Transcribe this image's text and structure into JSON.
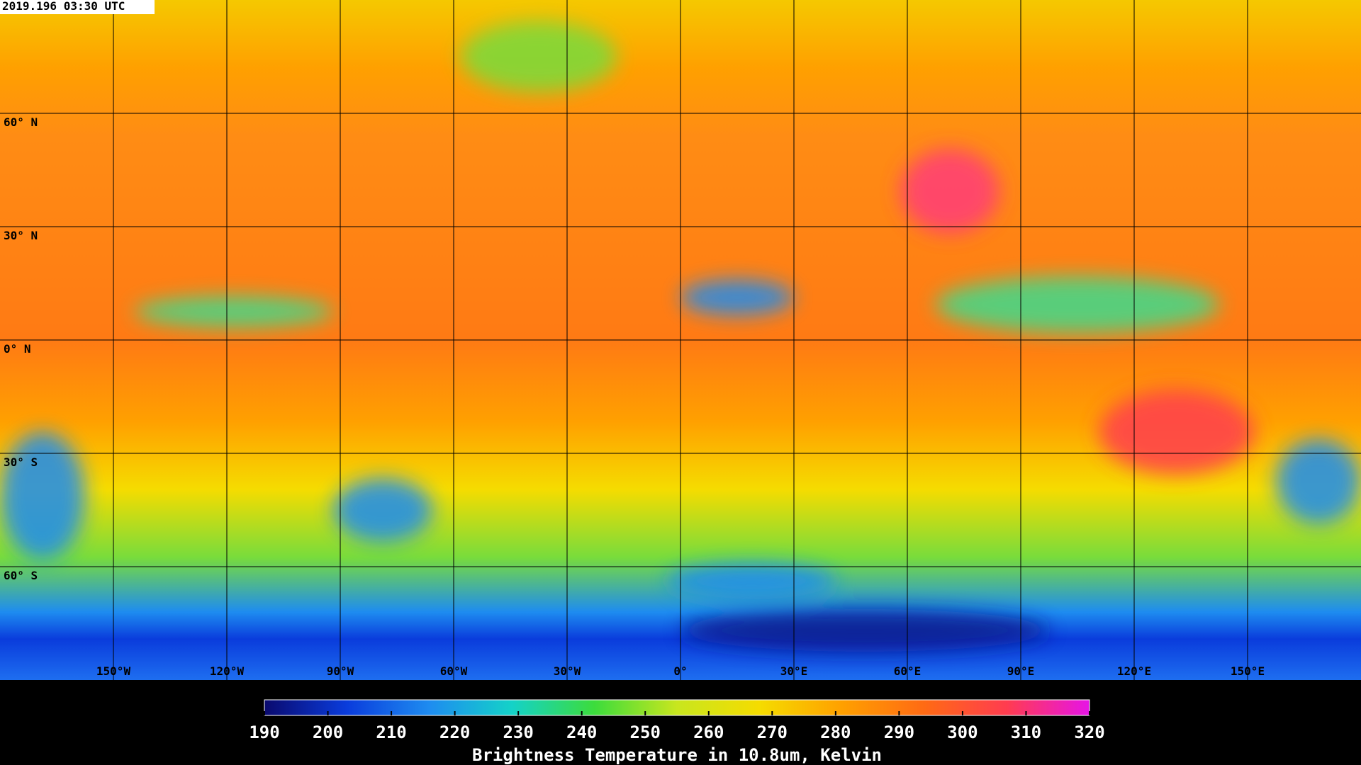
{
  "timestamp": "2019.196 03:30 UTC",
  "map": {
    "lon_range": [
      -180,
      180
    ],
    "lat_range": [
      90,
      -90
    ],
    "lat_lines": [
      {
        "value": 60,
        "label": "60° N"
      },
      {
        "value": 30,
        "label": "30° N"
      },
      {
        "value": 0,
        "label": "0° N"
      },
      {
        "value": -30,
        "label": "30° S"
      },
      {
        "value": -60,
        "label": "60° S"
      }
    ],
    "lon_lines": [
      {
        "value": -150,
        "label": "150°W"
      },
      {
        "value": -120,
        "label": "120°W"
      },
      {
        "value": -90,
        "label": "90°W"
      },
      {
        "value": -60,
        "label": "60°W"
      },
      {
        "value": -30,
        "label": "30°W"
      },
      {
        "value": 0,
        "label": "0°"
      },
      {
        "value": 30,
        "label": "30°E"
      },
      {
        "value": 60,
        "label": "60°E"
      },
      {
        "value": 90,
        "label": "90°E"
      },
      {
        "value": 120,
        "label": "120°E"
      },
      {
        "value": 150,
        "label": "150°E"
      }
    ]
  },
  "colorbar": {
    "label": "Brightness Temperature in 10.8um, Kelvin",
    "lim": [
      190,
      320
    ],
    "ticks": [
      190,
      200,
      210,
      220,
      230,
      240,
      250,
      260,
      270,
      280,
      290,
      300,
      310,
      320
    ],
    "colors": [
      "#0a0a6e",
      "#0a3cdc",
      "#1e8cf0",
      "#14d2c8",
      "#3cdc3c",
      "#c8e61e",
      "#f5dc00",
      "#ffa000",
      "#ff6a14",
      "#ff3c50",
      "#e614e6"
    ]
  }
}
